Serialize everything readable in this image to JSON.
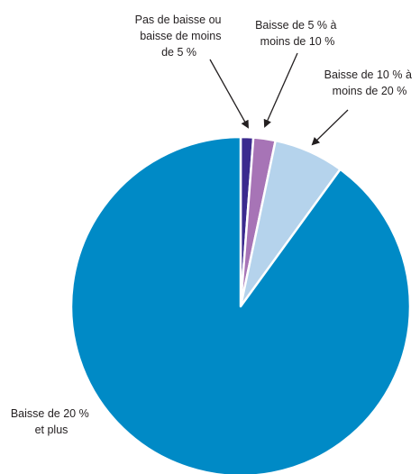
{
  "chart_data": {
    "type": "pie",
    "slices": [
      {
        "label_lines": [
          "Pas de baisse ou",
          "baisse de moins",
          "de 5 %"
        ],
        "value": 1.2,
        "color": "#3b2a8e"
      },
      {
        "label_lines": [
          "Baisse de 5 % à",
          "moins de 10 %"
        ],
        "value": 2.1,
        "color": "#a774b6"
      },
      {
        "label_lines": [
          "Baisse de 10 % à",
          "moins de 20 %"
        ],
        "value": 6.7,
        "color": "#b5d3ec"
      },
      {
        "label_lines": [
          "Baisse de 20 %",
          "et plus"
        ],
        "value": 90.0,
        "color": "#008ac6"
      }
    ],
    "start": "12 o'clock",
    "direction": "clockwise",
    "legend": "none"
  }
}
